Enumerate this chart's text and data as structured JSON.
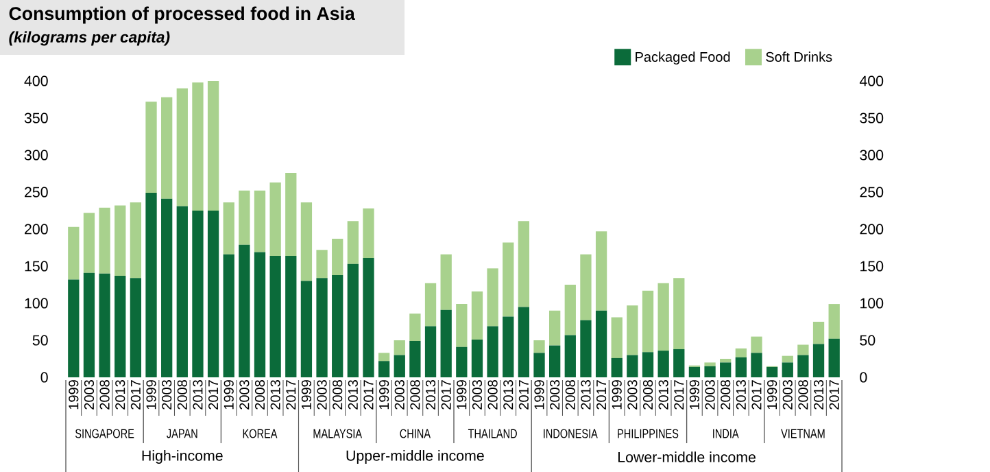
{
  "chart_data": {
    "type": "bar",
    "stacked": true,
    "title": "Consumption of processed food in Asia",
    "subtitle": "(kilograms per capita)",
    "categories": [
      "1999",
      "2003",
      "2008",
      "2013",
      "2017",
      "1999",
      "2003",
      "2008",
      "2013",
      "2017",
      "1999",
      "2003",
      "2008",
      "2013",
      "2017",
      "1999",
      "2003",
      "2008",
      "2013",
      "2017",
      "1999",
      "2003",
      "2008",
      "2013",
      "2017",
      "1999",
      "2003",
      "2008",
      "2013",
      "2017",
      "1999",
      "2003",
      "2008",
      "2013",
      "2017",
      "1999",
      "2003",
      "2008",
      "2013",
      "2017",
      "1999",
      "2003",
      "2008",
      "2013",
      "2017",
      "1999",
      "2003",
      "2008",
      "2013",
      "2017"
    ],
    "series": [
      {
        "name": "Packaged Food",
        "color": "#0b6b3a",
        "values": [
          132,
          141,
          140,
          137,
          134,
          249,
          241,
          231,
          225,
          225,
          166,
          179,
          169,
          164,
          164,
          130,
          134,
          138,
          153,
          161,
          22,
          30,
          49,
          69,
          91,
          41,
          51,
          69,
          82,
          95,
          33,
          43,
          57,
          77,
          90,
          26,
          30,
          34,
          36,
          38,
          14,
          15,
          20,
          27,
          33,
          14,
          20,
          30,
          45,
          52
        ]
      },
      {
        "name": "Soft Drinks",
        "color": "#a8d18d",
        "values": [
          71,
          81,
          89,
          95,
          102,
          123,
          137,
          159,
          173,
          175,
          70,
          73,
          83,
          99,
          112,
          106,
          38,
          49,
          58,
          67,
          11,
          20,
          37,
          58,
          75,
          58,
          65,
          78,
          100,
          116,
          17,
          47,
          68,
          89,
          107,
          55,
          67,
          83,
          91,
          96,
          2,
          5,
          5,
          12,
          22,
          1,
          9,
          14,
          30,
          47
        ]
      }
    ],
    "ylim": [
      0,
      400
    ],
    "yticks": [
      0,
      50,
      100,
      150,
      200,
      250,
      300,
      350,
      400
    ],
    "y2lim": [
      0,
      400
    ],
    "y2ticks": [
      0,
      50,
      100,
      150,
      200,
      250,
      300,
      350,
      400
    ],
    "legend": "top right",
    "annotations": [
      "SINGAPORE",
      "JAPAN",
      "KOREA",
      "MALAYSIA",
      "CHINA",
      "THAILAND",
      "INDONESIA",
      "PHILIPPINES",
      "INDIA",
      "VIETNAM",
      "High-income",
      "Upper-middle income",
      "Lower-middle income"
    ]
  }
}
